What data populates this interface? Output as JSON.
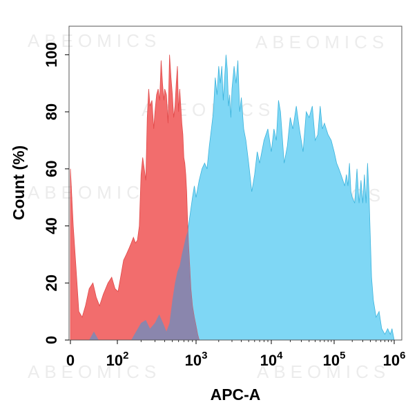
{
  "watermark": "ABEOMICS",
  "chart_data": {
    "type": "area",
    "title": "",
    "xlabel": "APC-A",
    "ylabel": "Count  (%)",
    "x_scale": "biexponential",
    "x_ticks": [
      {
        "value": 0,
        "base": "0",
        "exp": ""
      },
      {
        "value": 100,
        "base": "10",
        "exp": "2"
      },
      {
        "value": 1000,
        "base": "10",
        "exp": "3"
      },
      {
        "value": 10000,
        "base": "10",
        "exp": "4"
      },
      {
        "value": 100000,
        "base": "10",
        "exp": "5"
      },
      {
        "value": 1000000,
        "base": "10",
        "exp": "6"
      }
    ],
    "ylim": [
      0,
      110
    ],
    "y_ticks": [
      0,
      20,
      40,
      60,
      80,
      100
    ],
    "grid": false,
    "legend": "none",
    "series": [
      {
        "color": "#f26d6d",
        "points": [
          [
            0,
            60
          ],
          [
            6,
            40
          ],
          [
            12,
            25
          ],
          [
            18,
            10
          ],
          [
            25,
            8
          ],
          [
            32,
            12
          ],
          [
            40,
            18
          ],
          [
            48,
            20
          ],
          [
            55,
            15
          ],
          [
            62,
            12
          ],
          [
            70,
            16
          ],
          [
            80,
            20
          ],
          [
            88,
            22
          ],
          [
            95,
            18
          ],
          [
            102,
            17
          ],
          [
            110,
            22
          ],
          [
            120,
            28
          ],
          [
            130,
            30
          ],
          [
            140,
            32
          ],
          [
            150,
            34
          ],
          [
            160,
            36
          ],
          [
            170,
            34
          ],
          [
            180,
            35
          ],
          [
            190,
            40
          ],
          [
            200,
            58
          ],
          [
            210,
            64
          ],
          [
            220,
            60
          ],
          [
            230,
            56
          ],
          [
            240,
            78
          ],
          [
            250,
            88
          ],
          [
            260,
            82
          ],
          [
            275,
            84
          ],
          [
            290,
            74
          ],
          [
            300,
            80
          ],
          [
            315,
            86
          ],
          [
            330,
            88
          ],
          [
            345,
            84
          ],
          [
            360,
            98
          ],
          [
            375,
            90
          ],
          [
            390,
            84
          ],
          [
            400,
            88
          ],
          [
            420,
            86
          ],
          [
            440,
            76
          ],
          [
            460,
            100
          ],
          [
            480,
            92
          ],
          [
            500,
            86
          ],
          [
            520,
            78
          ],
          [
            540,
            82
          ],
          [
            560,
            90
          ],
          [
            580,
            96
          ],
          [
            600,
            80
          ],
          [
            620,
            88
          ],
          [
            640,
            82
          ],
          [
            660,
            76
          ],
          [
            680,
            72
          ],
          [
            700,
            64
          ],
          [
            720,
            62
          ],
          [
            740,
            58
          ],
          [
            760,
            52
          ],
          [
            780,
            42
          ],
          [
            800,
            34
          ],
          [
            830,
            26
          ],
          [
            860,
            18
          ],
          [
            900,
            12
          ],
          [
            950,
            8
          ],
          [
            1000,
            5
          ],
          [
            1050,
            2
          ],
          [
            1100,
            0
          ]
        ]
      },
      {
        "color": "#7fd7f5",
        "points": [
          [
            0,
            0
          ],
          [
            40,
            0
          ],
          [
            50,
            3
          ],
          [
            60,
            0
          ],
          [
            100,
            0
          ],
          [
            150,
            0
          ],
          [
            200,
            6
          ],
          [
            230,
            7
          ],
          [
            260,
            4
          ],
          [
            300,
            6
          ],
          [
            340,
            9
          ],
          [
            380,
            6
          ],
          [
            420,
            3
          ],
          [
            460,
            6
          ],
          [
            500,
            14
          ],
          [
            540,
            20
          ],
          [
            580,
            24
          ],
          [
            620,
            26
          ],
          [
            660,
            30
          ],
          [
            700,
            33
          ],
          [
            740,
            36
          ],
          [
            780,
            38
          ],
          [
            820,
            42
          ],
          [
            860,
            46
          ],
          [
            900,
            50
          ],
          [
            950,
            54
          ],
          [
            1000,
            50
          ],
          [
            1100,
            56
          ],
          [
            1200,
            60
          ],
          [
            1300,
            62
          ],
          [
            1400,
            60
          ],
          [
            1500,
            68
          ],
          [
            1600,
            74
          ],
          [
            1700,
            80
          ],
          [
            1800,
            92
          ],
          [
            1900,
            86
          ],
          [
            2000,
            96
          ],
          [
            2100,
            90
          ],
          [
            2200,
            96
          ],
          [
            2300,
            84
          ],
          [
            2400,
            92
          ],
          [
            2500,
            100
          ],
          [
            2600,
            95
          ],
          [
            2700,
            82
          ],
          [
            2800,
            86
          ],
          [
            2900,
            78
          ],
          [
            3000,
            88
          ],
          [
            3200,
            96
          ],
          [
            3400,
            90
          ],
          [
            3600,
            98
          ],
          [
            3800,
            80
          ],
          [
            4000,
            85
          ],
          [
            4300,
            74
          ],
          [
            4600,
            70
          ],
          [
            5000,
            62
          ],
          [
            5500,
            52
          ],
          [
            6000,
            58
          ],
          [
            6500,
            66
          ],
          [
            7000,
            62
          ],
          [
            8000,
            70
          ],
          [
            9000,
            74
          ],
          [
            10000,
            66
          ],
          [
            11000,
            74
          ],
          [
            12000,
            70
          ],
          [
            13000,
            84
          ],
          [
            14000,
            80
          ],
          [
            16000,
            62
          ],
          [
            18000,
            68
          ],
          [
            20000,
            78
          ],
          [
            22000,
            74
          ],
          [
            25000,
            82
          ],
          [
            28000,
            74
          ],
          [
            32000,
            66
          ],
          [
            36000,
            80
          ],
          [
            40000,
            78
          ],
          [
            45000,
            82
          ],
          [
            50000,
            70
          ],
          [
            55000,
            72
          ],
          [
            60000,
            82
          ],
          [
            65000,
            74
          ],
          [
            70000,
            76
          ],
          [
            80000,
            72
          ],
          [
            90000,
            70
          ],
          [
            100000,
            66
          ],
          [
            110000,
            62
          ],
          [
            120000,
            60
          ],
          [
            130000,
            58
          ],
          [
            140000,
            56
          ],
          [
            150000,
            54
          ],
          [
            160000,
            58
          ],
          [
            170000,
            54
          ],
          [
            180000,
            62
          ],
          [
            190000,
            52
          ],
          [
            200000,
            50
          ],
          [
            220000,
            48
          ],
          [
            240000,
            60
          ],
          [
            260000,
            48
          ],
          [
            280000,
            56
          ],
          [
            300000,
            48
          ],
          [
            320000,
            58
          ],
          [
            340000,
            48
          ],
          [
            360000,
            62
          ],
          [
            380000,
            52
          ],
          [
            400000,
            36
          ],
          [
            420000,
            22
          ],
          [
            450000,
            14
          ],
          [
            500000,
            8
          ],
          [
            560000,
            10
          ],
          [
            620000,
            4
          ],
          [
            700000,
            2
          ],
          [
            780000,
            4
          ],
          [
            860000,
            2
          ],
          [
            920000,
            4
          ],
          [
            1000000,
            0
          ]
        ]
      }
    ],
    "overlap_color": "#8a86ad"
  }
}
